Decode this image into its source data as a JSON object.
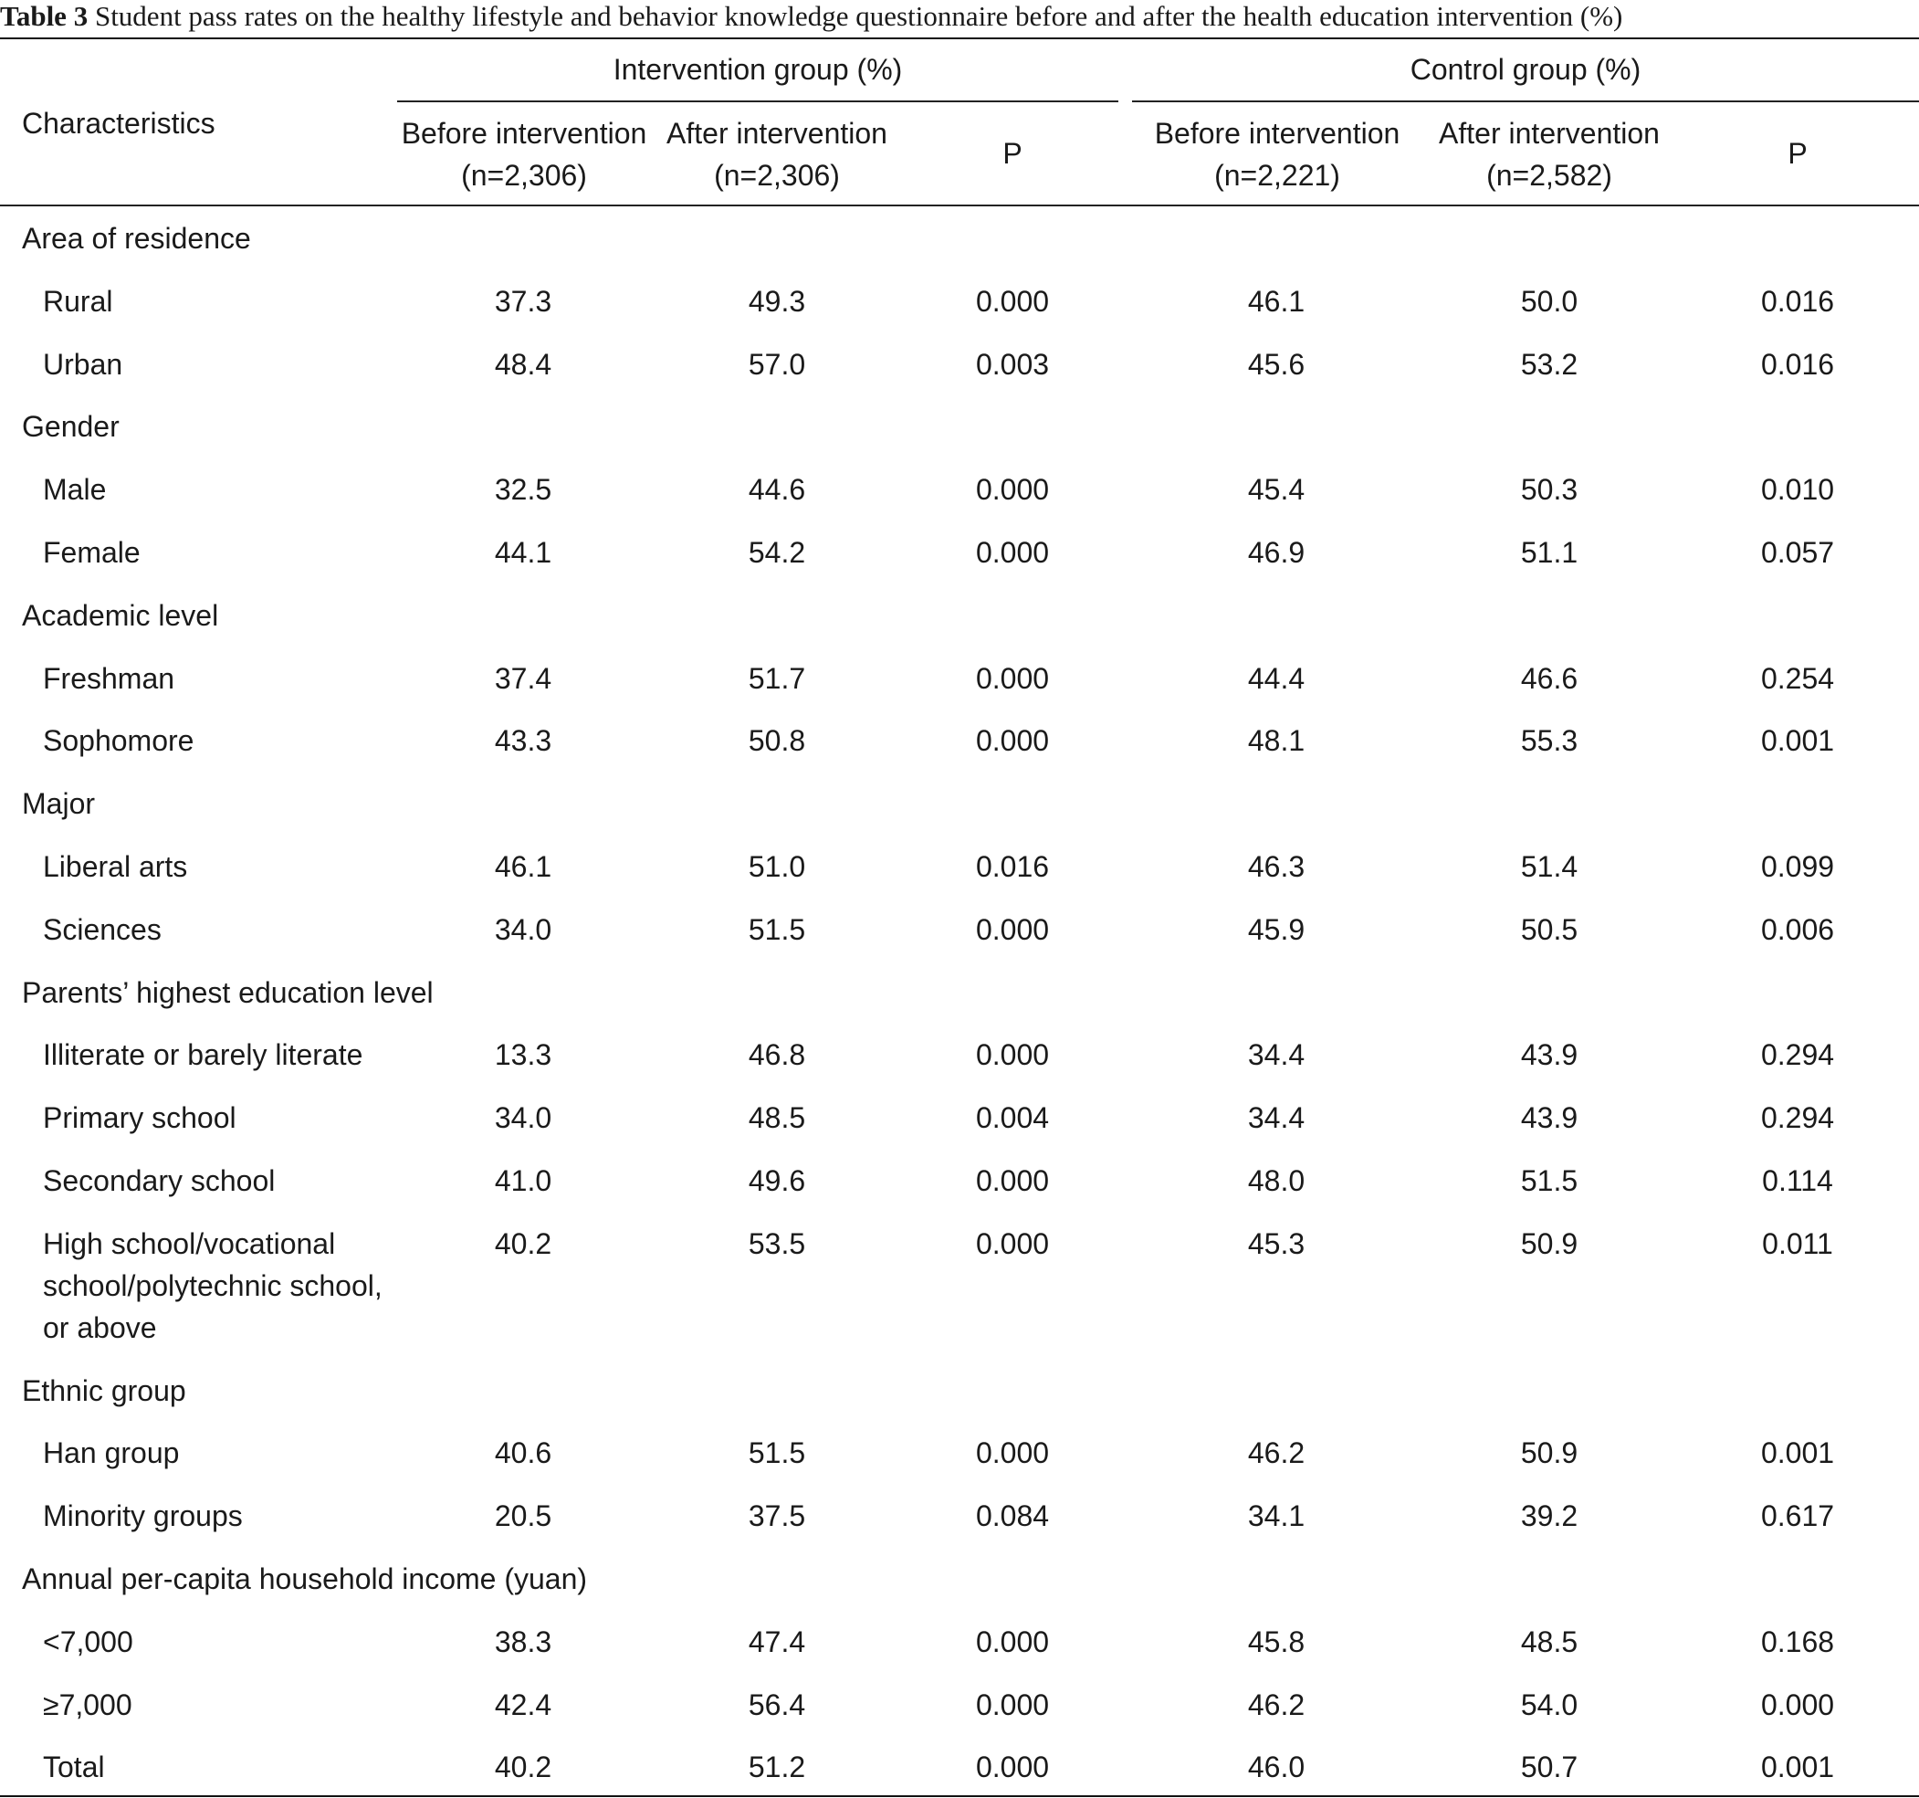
{
  "caption": {
    "label": "Table 3",
    "text": "Student pass rates on the healthy lifestyle and behavior knowledge questionnaire before and after the health education intervention (%)"
  },
  "header": {
    "characteristics": "Characteristics",
    "intervention_group": "Intervention group (%)",
    "control_group": "Control group (%)",
    "columns": [
      {
        "line1": "Before intervention",
        "line2": "(n=2,306)"
      },
      {
        "line1": "After intervention",
        "line2": "(n=2,306)"
      },
      {
        "line1": "P",
        "line2": ""
      },
      {
        "line1": "Before intervention",
        "line2": "(n=2,221)"
      },
      {
        "line1": "After intervention",
        "line2": "(n=2,582)"
      },
      {
        "line1": "P",
        "line2": ""
      }
    ]
  },
  "rows": [
    {
      "type": "group",
      "label": "Area of residence"
    },
    {
      "type": "item",
      "label": "Rural",
      "values": [
        "37.3",
        "49.3",
        "0.000",
        "46.1",
        "50.0",
        "0.016"
      ]
    },
    {
      "type": "item",
      "label": "Urban",
      "values": [
        "48.4",
        "57.0",
        "0.003",
        "45.6",
        "53.2",
        "0.016"
      ]
    },
    {
      "type": "group",
      "label": "Gender"
    },
    {
      "type": "item",
      "label": "Male",
      "values": [
        "32.5",
        "44.6",
        "0.000",
        "45.4",
        "50.3",
        "0.010"
      ]
    },
    {
      "type": "item",
      "label": "Female",
      "values": [
        "44.1",
        "54.2",
        "0.000",
        "46.9",
        "51.1",
        "0.057"
      ]
    },
    {
      "type": "group",
      "label": "Academic level"
    },
    {
      "type": "item",
      "label": "Freshman",
      "values": [
        "37.4",
        "51.7",
        "0.000",
        "44.4",
        "46.6",
        "0.254"
      ]
    },
    {
      "type": "item",
      "label": "Sophomore",
      "values": [
        "43.3",
        "50.8",
        "0.000",
        "48.1",
        "55.3",
        "0.001"
      ]
    },
    {
      "type": "group",
      "label": "Major"
    },
    {
      "type": "item",
      "label": "Liberal arts",
      "values": [
        "46.1",
        "51.0",
        "0.016",
        "46.3",
        "51.4",
        "0.099"
      ]
    },
    {
      "type": "item",
      "label": "Sciences",
      "values": [
        "34.0",
        "51.5",
        "0.000",
        "45.9",
        "50.5",
        "0.006"
      ]
    },
    {
      "type": "group",
      "label": "Parents’ highest education level"
    },
    {
      "type": "item",
      "label": "Illiterate or barely literate",
      "values": [
        "13.3",
        "46.8",
        "0.000",
        "34.4",
        "43.9",
        "0.294"
      ]
    },
    {
      "type": "item",
      "label": "Primary school",
      "values": [
        "34.0",
        "48.5",
        "0.004",
        "34.4",
        "43.9",
        "0.294"
      ]
    },
    {
      "type": "item",
      "label": "Secondary school",
      "values": [
        "41.0",
        "49.6",
        "0.000",
        "48.0",
        "51.5",
        "0.114"
      ]
    },
    {
      "type": "item",
      "label_lines": [
        "High school/vocational",
        "school/polytechnic school,",
        "or above"
      ],
      "values": [
        "40.2",
        "53.5",
        "0.000",
        "45.3",
        "50.9",
        "0.011"
      ]
    },
    {
      "type": "group",
      "label": "Ethnic group"
    },
    {
      "type": "item",
      "label": "Han group",
      "values": [
        "40.6",
        "51.5",
        "0.000",
        "46.2",
        "50.9",
        "0.001"
      ]
    },
    {
      "type": "item",
      "label": "Minority groups",
      "values": [
        "20.5",
        "37.5",
        "0.084",
        "34.1",
        "39.2",
        "0.617"
      ]
    },
    {
      "type": "group",
      "label": "Annual per-capita household income (yuan)"
    },
    {
      "type": "item",
      "label": "<7,000",
      "values": [
        "38.3",
        "47.4",
        "0.000",
        "45.8",
        "48.5",
        "0.168"
      ]
    },
    {
      "type": "item",
      "label": "≥7,000",
      "values": [
        "42.4",
        "56.4",
        "0.000",
        "46.2",
        "54.0",
        "0.000"
      ]
    },
    {
      "type": "item",
      "label": "Total",
      "values": [
        "40.2",
        "51.2",
        "0.000",
        "46.0",
        "50.7",
        "0.001"
      ]
    }
  ]
}
